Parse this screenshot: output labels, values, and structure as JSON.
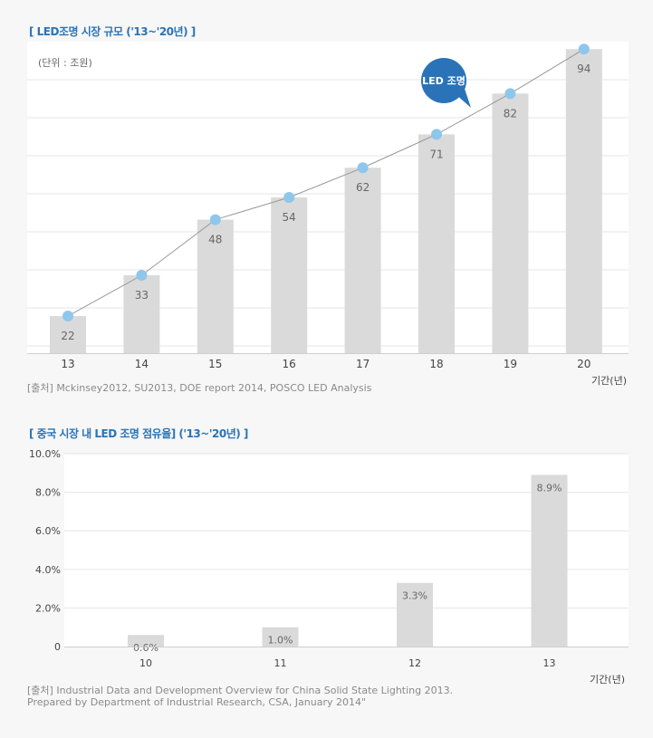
{
  "colors": {
    "title": "#2a73b8",
    "bar": "#dadada",
    "grid": "#e6e6e6",
    "axis": "#cfcfcf",
    "line": "#999999",
    "marker": "#8ec6ec",
    "callout": "#2a73b8",
    "text": "#666666"
  },
  "chart_data": [
    {
      "type": "bar",
      "title": "[ LED조명 시장 규모 ('13~'20년) ]",
      "unit_note": "(단위 : 조원)",
      "xlabel": "기간(년)",
      "categories": [
        "13",
        "14",
        "15",
        "16",
        "17",
        "18",
        "19",
        "20"
      ],
      "values": [
        22,
        33,
        48,
        54,
        62,
        71,
        82,
        94
      ],
      "ylim": [
        12,
        96
      ],
      "grid": true,
      "overlay_line": {
        "type": "line",
        "values": [
          22,
          33,
          48,
          54,
          62,
          71,
          82,
          94
        ],
        "marker": "circle"
      },
      "callout": {
        "text": "LED 조명",
        "anchor_category": "18"
      },
      "source": "[출처] Mckinsey2012, SU2013, DOE report 2014, POSCO LED Analysis"
    },
    {
      "type": "bar",
      "title": "[ 중국 시장 내 LED 조명 점유율] ('13~'20년) ]",
      "xlabel": "기간(년)",
      "categories": [
        "10",
        "11",
        "12",
        "13"
      ],
      "values": [
        0.6,
        1.0,
        3.3,
        8.9
      ],
      "value_labels": [
        "0.6%",
        "1.0%",
        "3.3%",
        "8.9%"
      ],
      "y_ticks": [
        "0",
        "2.0%",
        "4.0%",
        "6.0%",
        "8.0%",
        "10.0%"
      ],
      "ylim": [
        0,
        10
      ],
      "grid": true,
      "source": "[출처] Industrial Data and Development Overview for China Solid State Lighting 2013.\nPrepared by Department of Industrial Research, CSA, January 2014\""
    }
  ]
}
